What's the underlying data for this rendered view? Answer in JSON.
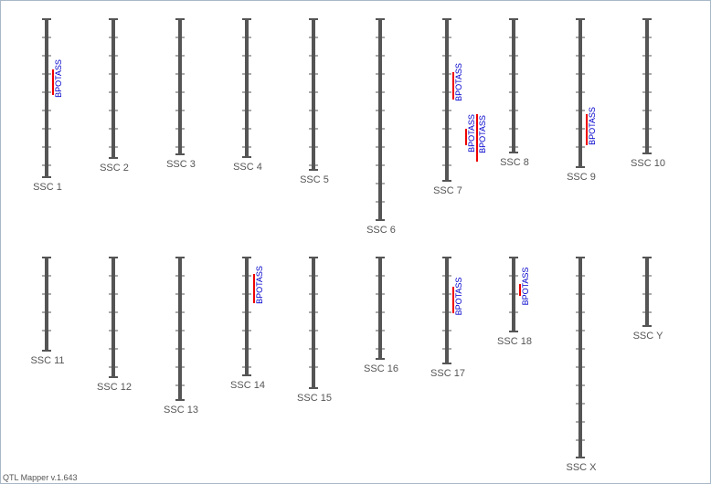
{
  "chromosomes": [
    {
      "label": "SSC 1",
      "qtls": [
        {
          "label": "BPOTASS"
        }
      ]
    },
    {
      "label": "SSC 2",
      "qtls": []
    },
    {
      "label": "SSC 3",
      "qtls": []
    },
    {
      "label": "SSC 4",
      "qtls": []
    },
    {
      "label": "SSC 5",
      "qtls": []
    },
    {
      "label": "SSC 6",
      "qtls": []
    },
    {
      "label": "SSC 7",
      "qtls": [
        {
          "label": "BPOTASS"
        },
        {
          "label": "BPOTASS"
        },
        {
          "label": "BPOTASS"
        }
      ]
    },
    {
      "label": "SSC 8",
      "qtls": []
    },
    {
      "label": "SSC 9",
      "qtls": [
        {
          "label": "BPOTASS"
        }
      ]
    },
    {
      "label": "SSC 10",
      "qtls": []
    },
    {
      "label": "SSC 11",
      "qtls": []
    },
    {
      "label": "SSC 12",
      "qtls": []
    },
    {
      "label": "SSC 13",
      "qtls": []
    },
    {
      "label": "SSC 14",
      "qtls": [
        {
          "label": "BPOTASS"
        }
      ]
    },
    {
      "label": "SSC 15",
      "qtls": []
    },
    {
      "label": "SSC 16",
      "qtls": []
    },
    {
      "label": "SSC 17",
      "qtls": [
        {
          "label": "BPOTASS"
        }
      ]
    },
    {
      "label": "SSC 18",
      "qtls": [
        {
          "label": "BPOTASS"
        }
      ]
    },
    {
      "label": "SSC X",
      "qtls": []
    },
    {
      "label": "SSC Y",
      "qtls": []
    }
  ],
  "footer": "QTL Mapper v.1.643"
}
